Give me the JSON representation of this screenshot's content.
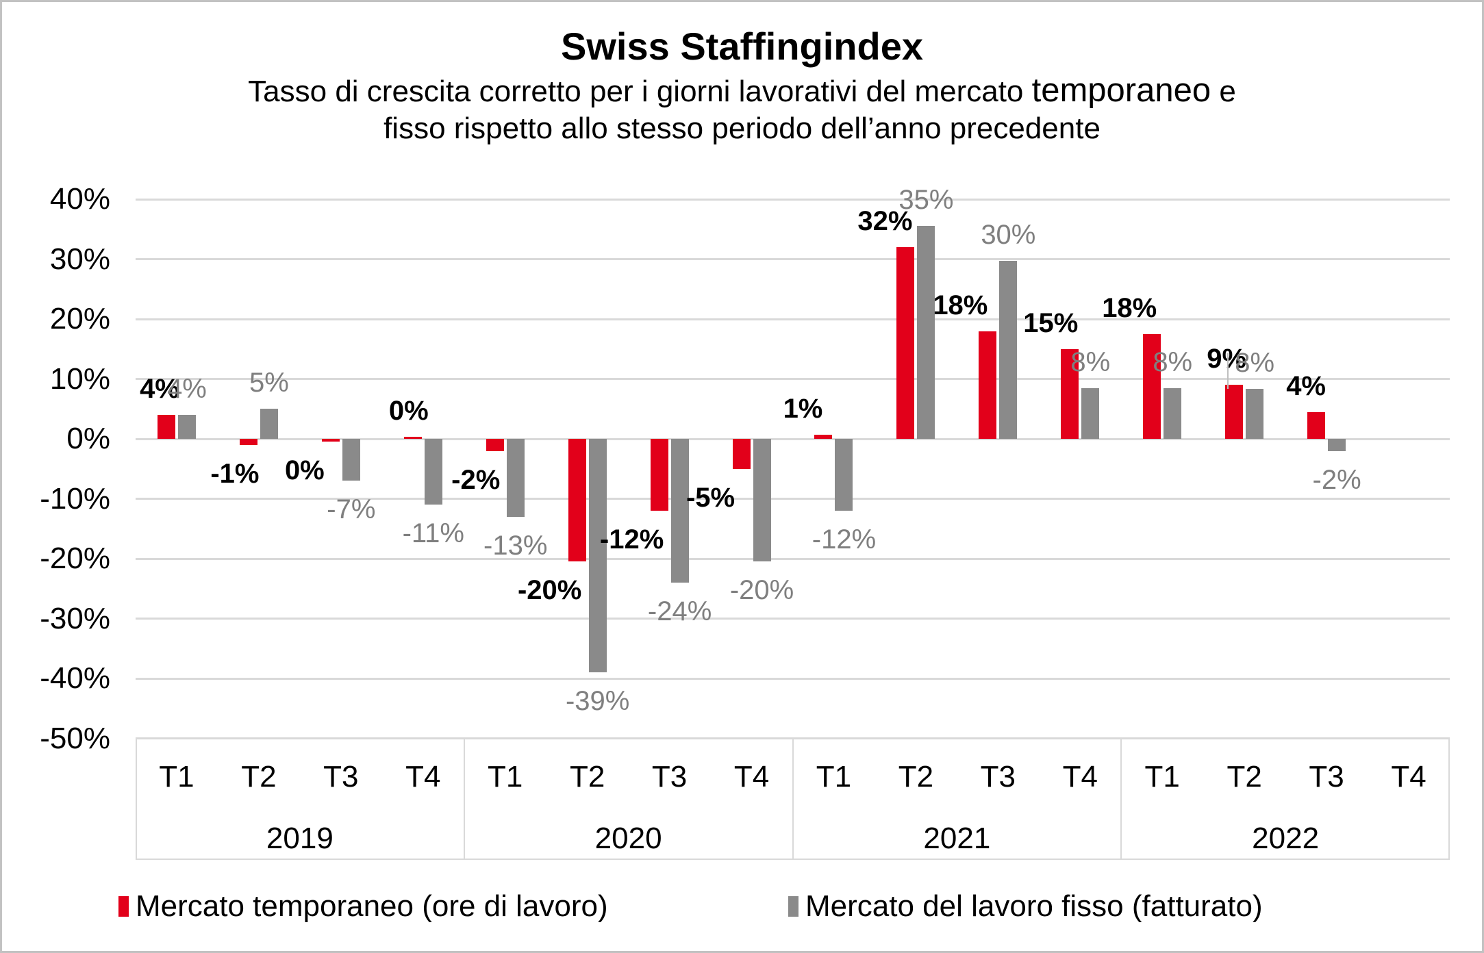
{
  "header": {
    "title": "Swiss Staffingindex",
    "subtitle_prefix": "Tasso di crescita corretto per i giorni lavorativi del mercato ",
    "subtitle_highlight": "temporaneo",
    "subtitle_suffix": " e",
    "subtitle_line2": "fisso rispetto allo stesso periodo dell’anno precedente"
  },
  "colors": {
    "temp_red": "#e2001a",
    "fisso_gray": "#8a8a8a",
    "grid": "#d9d9d9",
    "label_gray": "#7f7f7f",
    "axis_box_border": "#d9d9d9",
    "frame_border": "#c2c2c2"
  },
  "y_axis": {
    "ticks": [
      "40%",
      "30%",
      "20%",
      "10%",
      "0%",
      "-10%",
      "-20%",
      "-30%",
      "-40%",
      "-50%"
    ],
    "max": 40,
    "min": -50,
    "step": 10
  },
  "legend": [
    {
      "label": "Mercato temporaneo (ore di lavoro)",
      "color": "#e2001a"
    },
    {
      "label": "Mercato del lavoro fisso (fatturato)",
      "color": "#8a8a8a"
    }
  ],
  "chart_data": {
    "type": "bar",
    "title": "Swiss Staffingindex",
    "subtitle": "Tasso di crescita corretto per i giorni lavorativi del mercato temporaneo e fisso rispetto allo stesso periodo dell’anno precedente",
    "ylim": [
      -50,
      40
    ],
    "ytick_step": 10,
    "grid": true,
    "legend_position": "bottom",
    "series_meta": [
      {
        "key": "temp",
        "name": "Mercato temporaneo (ore di lavoro)",
        "color": "#e2001a",
        "label_style": "bold-black"
      },
      {
        "key": "fisso",
        "name": "Mercato del lavoro fisso (fatturato)",
        "color": "#8a8a8a",
        "label_style": "gray"
      }
    ],
    "groups": [
      {
        "year": "2019",
        "quarters": [
          {
            "q": "T1",
            "temp": {
              "value": 4,
              "label": "4%",
              "dx": -10
            },
            "fisso": {
              "value": 4,
              "label": "4%"
            }
          },
          {
            "q": "T2",
            "temp": {
              "value": -1,
              "label": "-1%",
              "dx": -20
            },
            "fisso": {
              "value": 5,
              "label": "5%"
            }
          },
          {
            "q": "T3",
            "temp": {
              "value": -0.4,
              "label": "0%",
              "dx": -38
            },
            "fisso": {
              "value": -7,
              "label": "-7%"
            }
          },
          {
            "q": "T4",
            "temp": {
              "value": 0.4,
              "label": "0%",
              "dx": -6
            },
            "fisso": {
              "value": -11,
              "label": "-11%"
            }
          }
        ]
      },
      {
        "year": "2020",
        "quarters": [
          {
            "q": "T1",
            "temp": {
              "value": -2,
              "label": "-2%",
              "dx": -28
            },
            "fisso": {
              "value": -13,
              "label": "-13%"
            }
          },
          {
            "q": "T2",
            "temp": {
              "value": -20.5,
              "label": "-20%",
              "dx": -40
            },
            "fisso": {
              "value": -39,
              "label": "-39%"
            }
          },
          {
            "q": "T3",
            "temp": {
              "value": -12,
              "label": "-12%",
              "dx": -40
            },
            "fisso": {
              "value": -24,
              "label": "-24%"
            }
          },
          {
            "q": "T4",
            "temp": {
              "value": -5,
              "label": "-5%",
              "dx": -45
            },
            "fisso": {
              "value": -20.5,
              "label": "-20%"
            }
          }
        ]
      },
      {
        "year": "2021",
        "quarters": [
          {
            "q": "T1",
            "temp": {
              "value": 0.7,
              "label": "1%",
              "dx": -30
            },
            "fisso": {
              "value": -12,
              "label": "-12%"
            }
          },
          {
            "q": "T2",
            "temp": {
              "value": 32,
              "label": "32%",
              "dx": -30
            },
            "fisso": {
              "value": 35.5,
              "label": "35%"
            }
          },
          {
            "q": "T3",
            "temp": {
              "value": 18,
              "label": "18%",
              "dx": -40
            },
            "fisso": {
              "value": 29.7,
              "label": "30%"
            }
          },
          {
            "q": "T4",
            "temp": {
              "value": 15,
              "label": "15%",
              "dx": -28
            },
            "fisso": {
              "value": 8.5,
              "label": "8%"
            }
          }
        ]
      },
      {
        "year": "2022",
        "quarters": [
          {
            "q": "T1",
            "temp": {
              "value": 17.5,
              "label": "18%",
              "dx": -33
            },
            "fisso": {
              "value": 8.5,
              "label": "8%"
            }
          },
          {
            "q": "T2",
            "temp": {
              "value": 9,
              "label": "9%",
              "dx": -11
            },
            "fisso": {
              "value": 8.3,
              "label": "8%",
              "leader": true
            }
          },
          {
            "q": "T3",
            "temp": {
              "value": 4.5,
              "label": "4%",
              "dx": -15
            },
            "fisso": {
              "value": -2,
              "label": "-2%"
            }
          },
          {
            "q": "T4",
            "temp": null,
            "fisso": null
          }
        ]
      }
    ]
  }
}
